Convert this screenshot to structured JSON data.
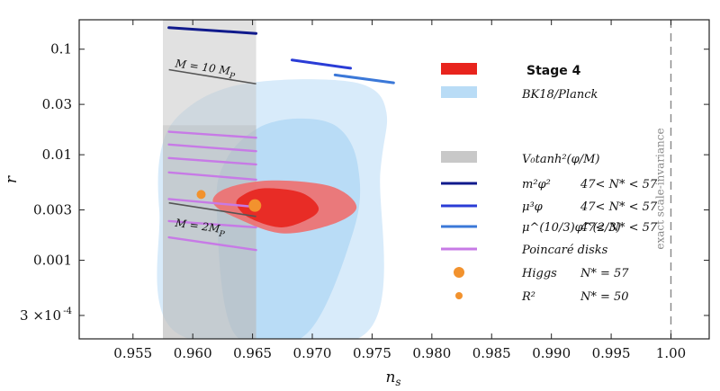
{
  "chart_data": {
    "type": "line",
    "xlabel": "n_s",
    "ylabel": "r",
    "xlim": [
      0.9505,
      1.0032
    ],
    "ylim": [
      0.00018,
      0.19
    ],
    "yscale": "log",
    "x_ticks": [
      0.955,
      0.96,
      0.965,
      0.97,
      0.975,
      0.98,
      0.985,
      0.99,
      0.995,
      1.0
    ],
    "x_tick_labels": [
      "0.955",
      "0.960",
      "0.965",
      "0.970",
      "0.975",
      "0.980",
      "0.985",
      "0.990",
      "0.995",
      "1.00"
    ],
    "y_ticks": [
      0.0003,
      0.001,
      0.003,
      0.01,
      0.03,
      0.1
    ],
    "y_tick_labels": [
      "3 ×10",
      "0.001",
      "0.003",
      "0.01",
      "0.03",
      "0.1"
    ],
    "y_tick_sup": "-4",
    "colors": {
      "stage4_outer": "#ef6e6e",
      "stage4_inner": "#e8241d",
      "bk18_outer": "#d8ebfa",
      "bk18_inner": "#b9dcf6",
      "tanh_band": "#c8c8c8",
      "m2phi2": "#101a8c",
      "mu3phi": "#2a3cd6",
      "mu103phi23": "#3b78d8",
      "poincare": "#c77ae6",
      "higgs": "#f2922e",
      "r2": "#f2922e"
    },
    "contours": {
      "bk18_outer": [
        [
          0.9588,
          0.0002
        ],
        [
          0.9572,
          0.003
        ],
        [
          0.9575,
          0.013
        ],
        [
          0.9596,
          0.028
        ],
        [
          0.9635,
          0.045
        ],
        [
          0.9695,
          0.052
        ],
        [
          0.9745,
          0.045
        ],
        [
          0.9762,
          0.025
        ],
        [
          0.9757,
          0.007
        ],
        [
          0.9744,
          0.0002
        ]
      ],
      "bk18_inner": [
        [
          0.9635,
          0.0002
        ],
        [
          0.962,
          0.003
        ],
        [
          0.9628,
          0.009
        ],
        [
          0.9655,
          0.018
        ],
        [
          0.969,
          0.022
        ],
        [
          0.9722,
          0.018
        ],
        [
          0.9738,
          0.008
        ],
        [
          0.9735,
          0.002
        ],
        [
          0.9695,
          0.0002
        ]
      ],
      "stage4_outer": [
        [
          0.9617,
          0.0035
        ],
        [
          0.9637,
          0.0025
        ],
        [
          0.9675,
          0.0018
        ],
        [
          0.9717,
          0.0022
        ],
        [
          0.9737,
          0.0032
        ],
        [
          0.9716,
          0.005
        ],
        [
          0.9666,
          0.0057
        ],
        [
          0.9628,
          0.0048
        ]
      ],
      "stage4_inner": [
        [
          0.9637,
          0.0033
        ],
        [
          0.9648,
          0.0025
        ],
        [
          0.9674,
          0.00205
        ],
        [
          0.9698,
          0.0025
        ],
        [
          0.9705,
          0.0032
        ],
        [
          0.969,
          0.0044
        ],
        [
          0.9658,
          0.0048
        ],
        [
          0.964,
          0.004
        ]
      ]
    },
    "tanh_band": [
      [
        0.9575,
        0.00018
      ],
      [
        0.9575,
        0.19
      ],
      [
        0.9653,
        0.19
      ],
      [
        0.9653,
        0.00018
      ]
    ],
    "tanh_band_dark": [
      [
        0.9575,
        0.00018
      ],
      [
        0.9575,
        0.019
      ],
      [
        0.9653,
        0.019
      ],
      [
        0.9653,
        0.00018
      ]
    ],
    "m_lines": [
      {
        "label_prefix": "M = 10 M",
        "label_sub": "P",
        "points": [
          [
            0.958,
            0.064
          ],
          [
            0.9653,
            0.047
          ]
        ],
        "label_at": [
          0.9585,
          0.068
        ]
      },
      {
        "label_prefix": "M = 2M",
        "label_sub": "P",
        "points": [
          [
            0.958,
            0.0035
          ],
          [
            0.9653,
            0.0026
          ]
        ],
        "label_at": [
          0.9585,
          0.0021
        ]
      }
    ],
    "series": [
      {
        "name": "m²φ²",
        "color_key": "m2phi2",
        "segments": [
          [
            [
              0.958,
              0.16
            ],
            [
              0.9653,
              0.141
            ]
          ]
        ]
      },
      {
        "name": "μ³φ",
        "color_key": "mu3phi",
        "segments": [
          [
            [
              0.9683,
              0.079
            ],
            [
              0.9732,
              0.066
            ]
          ]
        ]
      },
      {
        "name": "μ^(10/3)φ^(2/3)",
        "color_key": "mu103phi23",
        "segments": [
          [
            [
              0.9719,
              0.057
            ],
            [
              0.9768,
              0.048
            ]
          ]
        ]
      },
      {
        "name": "Poincaré disks",
        "color_key": "poincare",
        "segments": [
          [
            [
              0.958,
              0.0165
            ],
            [
              0.9653,
              0.0145
            ]
          ],
          [
            [
              0.958,
              0.0125
            ],
            [
              0.9653,
              0.0108
            ]
          ],
          [
            [
              0.958,
              0.0093
            ],
            [
              0.9653,
              0.0081
            ]
          ],
          [
            [
              0.958,
              0.0068
            ],
            [
              0.9653,
              0.0058
            ]
          ],
          [
            [
              0.958,
              0.0038
            ],
            [
              0.9653,
              0.0032
            ]
          ],
          [
            [
              0.958,
              0.00235
            ],
            [
              0.9653,
              0.00205
            ]
          ],
          [
            [
              0.958,
              0.00165
            ],
            [
              0.9653,
              0.00125
            ]
          ]
        ]
      }
    ],
    "points": [
      {
        "name": "Higgs",
        "x": 0.9652,
        "y": 0.0033,
        "size": 7
      },
      {
        "name": "R2",
        "x": 0.9607,
        "y": 0.0042,
        "size": 5
      }
    ],
    "scale_invariance": {
      "x": 1.0,
      "label": "exact scale-invariance"
    },
    "legend": {
      "placement": "right",
      "entries": [
        {
          "key": "stage4",
          "swatch": "patch",
          "color": "#e8241d",
          "label": "Stage 4",
          "bold": true
        },
        {
          "key": "bk18",
          "swatch": "patch",
          "color": "#b9dcf6",
          "label": "BK18/Planck"
        },
        {
          "key": "tanh",
          "swatch": "patch",
          "color": "#c8c8c8",
          "label": "V₀tanh²(φ/M)"
        },
        {
          "key": "m2",
          "swatch": "line",
          "color": "#101a8c",
          "label": "m²φ²",
          "cond": "47< N* < 57"
        },
        {
          "key": "mu3",
          "swatch": "line",
          "color": "#2a3cd6",
          "label": "μ³φ",
          "cond": "47< N* < 57"
        },
        {
          "key": "mu103",
          "swatch": "line",
          "color": "#3b78d8",
          "label": "μ^(10/3)φ^(2/3)",
          "cond": "47< N* < 57"
        },
        {
          "key": "poinc",
          "swatch": "line",
          "color": "#c77ae6",
          "label": "Poincaré disks"
        },
        {
          "key": "higgs",
          "swatch": "dot",
          "color": "#f2922e",
          "label": "Higgs",
          "cond": "N* = 57"
        },
        {
          "key": "r2",
          "swatch": "smalldot",
          "color": "#f2922e",
          "label": "R²",
          "cond": "N* = 50"
        }
      ]
    }
  }
}
